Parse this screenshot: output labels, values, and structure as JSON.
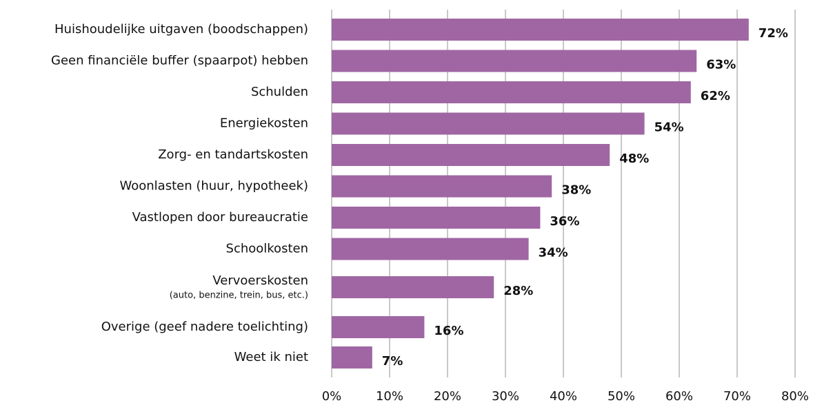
{
  "chart_data": {
    "type": "bar",
    "orientation": "horizontal",
    "categories": [
      "Huishoudelijke uitgaven (boodschappen)",
      "Geen financiële buffer (spaarpot) hebben",
      "Schulden",
      "Energiekosten",
      "Zorg- en tandartskosten",
      "Woonlasten (huur, hypotheek)",
      "Vastlopen door bureaucratie",
      "Schoolkosten",
      "Vervoerskosten",
      "Overige (geef nadere toelichting)",
      "Weet ik niet"
    ],
    "category_details": [
      null,
      null,
      null,
      null,
      null,
      null,
      null,
      null,
      "(auto, benzine, trein, bus, etc.)",
      null,
      null
    ],
    "values": [
      72,
      63,
      62,
      54,
      48,
      38,
      36,
      34,
      28,
      16,
      7
    ],
    "value_labels": [
      "72%",
      "63%",
      "62%",
      "54%",
      "48%",
      "38%",
      "36%",
      "34%",
      "28%",
      "16%",
      "7%"
    ],
    "color": "#a066a3",
    "xlim": [
      0,
      80
    ],
    "xticks": [
      {
        "value": 0,
        "label": "0%"
      },
      {
        "value": 10,
        "label": "10%"
      },
      {
        "value": 20,
        "label": "20%"
      },
      {
        "value": 30,
        "label": "30%"
      },
      {
        "value": 40,
        "label": "40%"
      },
      {
        "value": 50,
        "label": "50%"
      },
      {
        "value": 60,
        "label": "60%"
      },
      {
        "value": 70,
        "label": "70%"
      },
      {
        "value": 80,
        "label": "80%"
      }
    ],
    "grid": true
  }
}
